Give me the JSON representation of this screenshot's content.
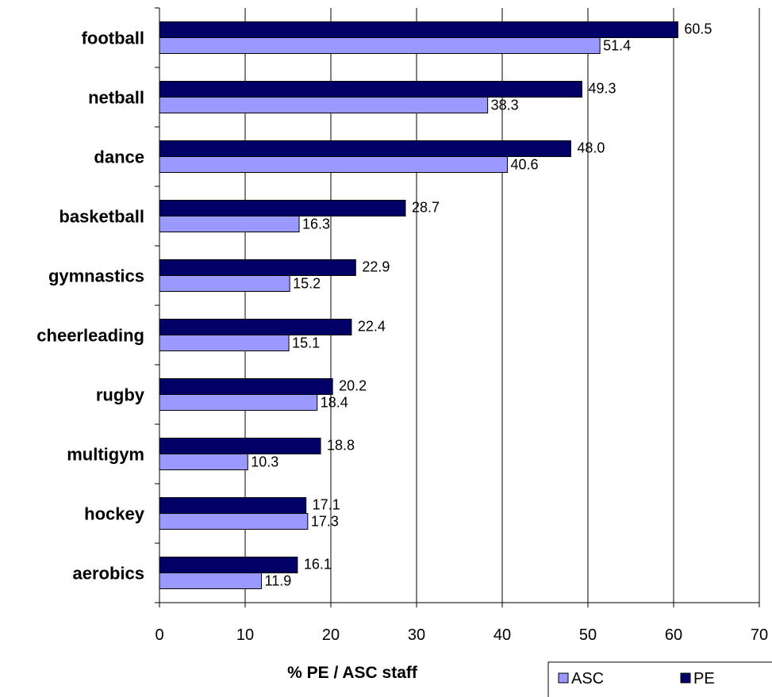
{
  "chart_data": {
    "type": "bar",
    "orientation": "horizontal",
    "categories": [
      "football",
      "netball",
      "dance",
      "basketball",
      "gymnastics",
      "cheerleading",
      "rugby",
      "multigym",
      "hockey",
      "aerobics"
    ],
    "series": [
      {
        "name": "PE",
        "color": "#000066",
        "values": [
          60.5,
          49.3,
          48.0,
          28.7,
          22.9,
          22.4,
          20.2,
          18.8,
          17.1,
          16.1
        ]
      },
      {
        "name": "ASC",
        "color": "#9999ff",
        "values": [
          51.4,
          38.3,
          40.6,
          16.3,
          15.2,
          15.1,
          18.4,
          10.3,
          17.3,
          11.9
        ]
      }
    ],
    "xlabel": "% PE / ASC staff",
    "xlim": [
      0,
      70
    ],
    "xticks": [
      0,
      10,
      20,
      30,
      40,
      50,
      60,
      70
    ],
    "grid": true,
    "legend_position": "bottom-right",
    "legend_order": [
      "ASC",
      "PE"
    ]
  }
}
